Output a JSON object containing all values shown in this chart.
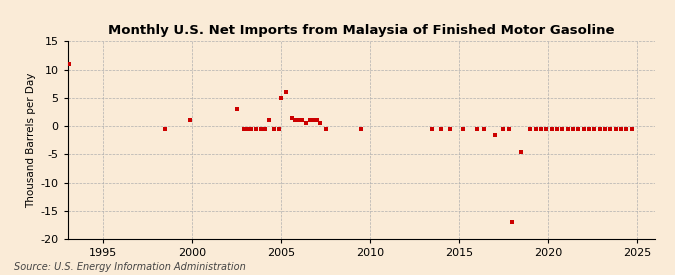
{
  "title": "Monthly U.S. Net Imports from Malaysia of Finished Motor Gasoline",
  "ylabel": "Thousand Barrels per Day",
  "source": "Source: U.S. Energy Information Administration",
  "xlim": [
    1993.0,
    2026.0
  ],
  "ylim": [
    -20,
    15
  ],
  "yticks": [
    -20,
    -15,
    -10,
    -5,
    0,
    5,
    10,
    15
  ],
  "xticks": [
    1995,
    2000,
    2005,
    2010,
    2015,
    2020,
    2025
  ],
  "background_color": "#faebd7",
  "plot_bg_color": "#faebd7",
  "marker_color": "#cc0000",
  "title_fontsize": 9.5,
  "tick_fontsize": 8,
  "ylabel_fontsize": 7.5,
  "source_fontsize": 7,
  "data_points": [
    [
      1993.1,
      11.0
    ],
    [
      1998.5,
      -0.5
    ],
    [
      1999.9,
      1.0
    ],
    [
      2002.5,
      3.0
    ],
    [
      2002.9,
      -0.5
    ],
    [
      2003.1,
      -0.5
    ],
    [
      2003.3,
      -0.5
    ],
    [
      2003.6,
      -0.5
    ],
    [
      2003.9,
      -0.5
    ],
    [
      2004.1,
      -0.5
    ],
    [
      2004.3,
      1.0
    ],
    [
      2004.6,
      -0.5
    ],
    [
      2004.9,
      -0.5
    ],
    [
      2005.0,
      5.0
    ],
    [
      2005.3,
      6.0
    ],
    [
      2005.6,
      1.5
    ],
    [
      2005.8,
      1.0
    ],
    [
      2006.0,
      1.0
    ],
    [
      2006.2,
      1.0
    ],
    [
      2006.4,
      0.5
    ],
    [
      2006.6,
      1.0
    ],
    [
      2006.8,
      1.0
    ],
    [
      2007.0,
      1.0
    ],
    [
      2007.2,
      0.5
    ],
    [
      2007.5,
      -0.5
    ],
    [
      2009.5,
      -0.5
    ],
    [
      2013.5,
      -0.5
    ],
    [
      2014.0,
      -0.5
    ],
    [
      2014.5,
      -0.5
    ],
    [
      2015.2,
      -0.5
    ],
    [
      2016.0,
      -0.5
    ],
    [
      2016.4,
      -0.5
    ],
    [
      2017.0,
      -1.5
    ],
    [
      2017.5,
      -0.5
    ],
    [
      2017.8,
      -0.5
    ],
    [
      2018.0,
      -17.0
    ],
    [
      2018.5,
      -4.5
    ],
    [
      2019.0,
      -0.5
    ],
    [
      2019.3,
      -0.5
    ],
    [
      2019.6,
      -0.5
    ],
    [
      2019.9,
      -0.5
    ],
    [
      2020.2,
      -0.5
    ],
    [
      2020.5,
      -0.5
    ],
    [
      2020.8,
      -0.5
    ],
    [
      2021.1,
      -0.5
    ],
    [
      2021.4,
      -0.5
    ],
    [
      2021.7,
      -0.5
    ],
    [
      2022.0,
      -0.5
    ],
    [
      2022.3,
      -0.5
    ],
    [
      2022.6,
      -0.5
    ],
    [
      2022.9,
      -0.5
    ],
    [
      2023.2,
      -0.5
    ],
    [
      2023.5,
      -0.5
    ],
    [
      2023.8,
      -0.5
    ],
    [
      2024.1,
      -0.5
    ],
    [
      2024.4,
      -0.5
    ],
    [
      2024.7,
      -0.5
    ]
  ]
}
